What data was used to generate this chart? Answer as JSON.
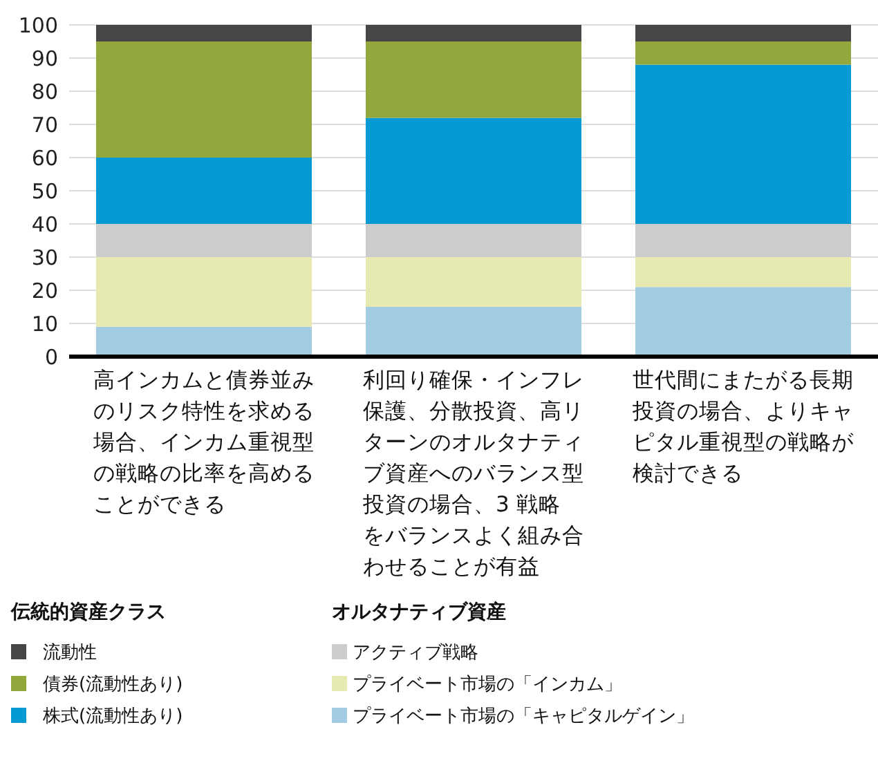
{
  "chart_data": {
    "type": "bar",
    "stacked": true,
    "categories": [
      "高インカムと債券並みのリスク特性を求める場合、インカム重視型の戦略の比率を高めることができる",
      "利回り確保・インフレ保護、分散投資、高リターンのオルタナティブ資産へのバランス型投資の場合、3 戦略をバランスよく組み合わせることが有益",
      "世代間にまたがる長期投資の場合、よりキャピタル重視型の戦略が検討できる"
    ],
    "series": [
      {
        "name": "プライベート市場の「キャピタルゲイン」",
        "color": "#a3cbe3",
        "values": [
          9,
          15,
          21
        ]
      },
      {
        "name": "プライベート市場の「インカム」",
        "color": "#e6eab0",
        "values": [
          21,
          15,
          9
        ]
      },
      {
        "name": "アクティブ戦略",
        "color": "#cccccc",
        "values": [
          10,
          10,
          10
        ]
      },
      {
        "name": "株式(流動性あり)",
        "color": "#069ad2",
        "values": [
          20,
          32,
          48
        ]
      },
      {
        "name": "債券(流動性あり)",
        "color": "#93a83c",
        "values": [
          35,
          23,
          7
        ]
      },
      {
        "name": "流動性",
        "color": "#464646",
        "values": [
          5,
          5,
          5
        ]
      }
    ],
    "annotations": [
      "伝統的資産クラス",
      "オルタナティブ資産"
    ],
    "ylim": [
      0,
      100
    ],
    "yticks": [
      0,
      10,
      20,
      30,
      40,
      50,
      60,
      70,
      80,
      90,
      100
    ],
    "grid": "y",
    "legend": "bottom"
  }
}
